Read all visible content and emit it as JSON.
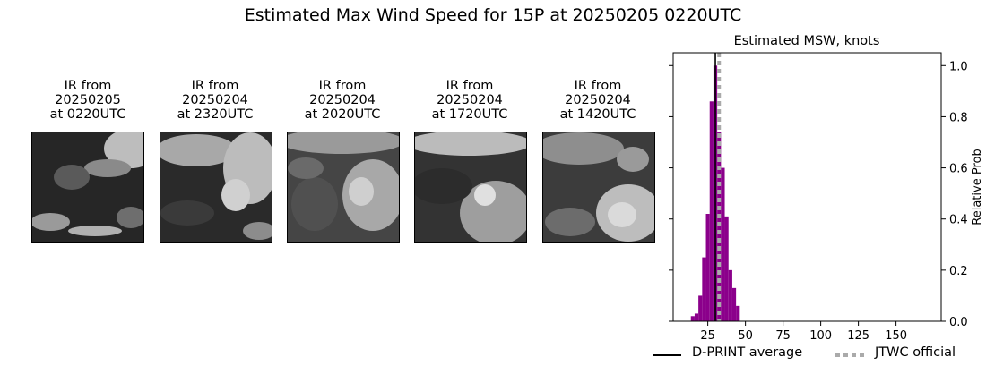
{
  "figure": {
    "suptitle": "Estimated Max Wind Speed for 15P at 20250205 0220UTC"
  },
  "panels": [
    {
      "title": "IR from\n20250205\nat 0220UTC",
      "image": "ir-satellite-image"
    },
    {
      "title": "IR from\n20250204\nat 2320UTC",
      "image": "ir-satellite-image"
    },
    {
      "title": "IR from\n20250204\nat 2020UTC",
      "image": "ir-satellite-image"
    },
    {
      "title": "IR from\n20250204\nat 1720UTC",
      "image": "ir-satellite-image"
    },
    {
      "title": "IR from\n20250204\nat 1420UTC",
      "image": "ir-satellite-image"
    }
  ],
  "chart_data": {
    "type": "bar",
    "title": "Estimated MSW, knots",
    "xlabel": "",
    "ylabel": "Relative Prob",
    "xlim": [
      2,
      180
    ],
    "ylim": [
      0,
      1.05
    ],
    "xticks": [
      25,
      50,
      75,
      100,
      125,
      150
    ],
    "yticks": [
      0.0,
      0.2,
      0.4,
      0.6,
      0.8,
      1.0
    ],
    "y_axis_side": "right",
    "bar_width": 2.5,
    "bar_color": "#8B008B",
    "series": [
      {
        "x": [
          15,
          17.5,
          20,
          22.5,
          25,
          27.5,
          30,
          32.5,
          35,
          37.5,
          40,
          42.5,
          45
        ],
        "values": [
          0.02,
          0.03,
          0.1,
          0.25,
          0.42,
          0.86,
          1.0,
          0.74,
          0.6,
          0.41,
          0.2,
          0.13,
          0.06
        ]
      }
    ],
    "reference_lines": [
      {
        "name": "D-PRINT average",
        "x": 30,
        "color": "#000000",
        "style": "solid"
      },
      {
        "name": "JTWC official",
        "x": 32.5,
        "color": "#aaaaaa",
        "style": "dashed"
      }
    ],
    "legend": {
      "position": "bottom",
      "entries": [
        "D-PRINT average",
        "JTWC official"
      ]
    }
  }
}
